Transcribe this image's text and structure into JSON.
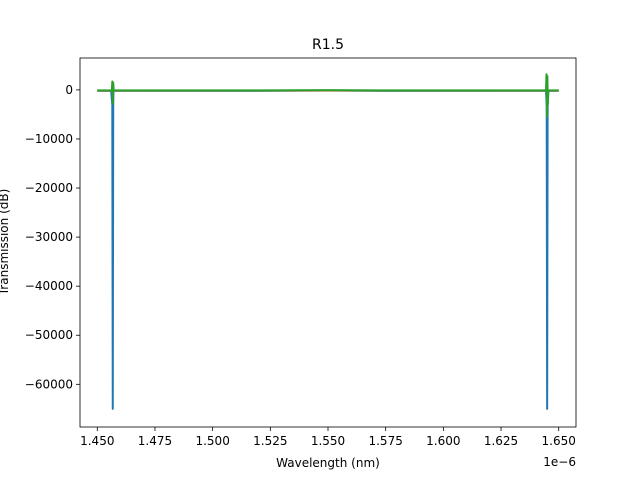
{
  "chart_data": {
    "type": "line",
    "title": "R1.5",
    "xlabel": "Wavelength (nm)",
    "ylabel": "Transmission (dB)",
    "x_offset_label": "1e−6",
    "xlim": [
      1.4425,
      1.6575
    ],
    "ylim": [
      -68700,
      6500
    ],
    "x_ticks": [
      1.45,
      1.475,
      1.5,
      1.525,
      1.55,
      1.575,
      1.6,
      1.625,
      1.65
    ],
    "x_tick_labels": [
      "1.450",
      "1.475",
      "1.500",
      "1.525",
      "1.550",
      "1.575",
      "1.600",
      "1.625",
      "1.650"
    ],
    "y_ticks": [
      0,
      -10000,
      -20000,
      -30000,
      -40000,
      -50000,
      -60000
    ],
    "y_tick_labels": [
      "0",
      "−10000",
      "−20000",
      "−30000",
      "−40000",
      "−50000",
      "−60000"
    ],
    "grid": false,
    "legend": "none",
    "series": [
      {
        "color": "#1f77b4",
        "x": [
          1.45,
          1.456,
          1.4565,
          1.4567,
          1.4569,
          1.457,
          1.52,
          1.55,
          1.58,
          1.6445,
          1.6448,
          1.645,
          1.6452,
          1.6455,
          1.65
        ],
        "y": [
          -200,
          -200,
          -3000,
          -65000,
          -3000,
          -200,
          -200,
          -150,
          -200,
          -200,
          -3000,
          -65000,
          -3000,
          -200,
          -200
        ]
      },
      {
        "color": "#ff7f0e",
        "x": [
          1.45,
          1.4567,
          1.55,
          1.645,
          1.65
        ],
        "y": [
          -150,
          -150,
          -120,
          -150,
          -150
        ]
      },
      {
        "color": "#2ca02c",
        "x": [
          1.45,
          1.4563,
          1.4565,
          1.4567,
          1.4569,
          1.4571,
          1.52,
          1.55,
          1.58,
          1.6445,
          1.6447,
          1.6449,
          1.6451,
          1.6453,
          1.6455,
          1.65
        ],
        "y": [
          -100,
          -100,
          1700,
          -2800,
          1500,
          -100,
          -100,
          -50,
          -100,
          -100,
          3200,
          -5500,
          2800,
          -3000,
          -100,
          -100
        ]
      }
    ]
  }
}
